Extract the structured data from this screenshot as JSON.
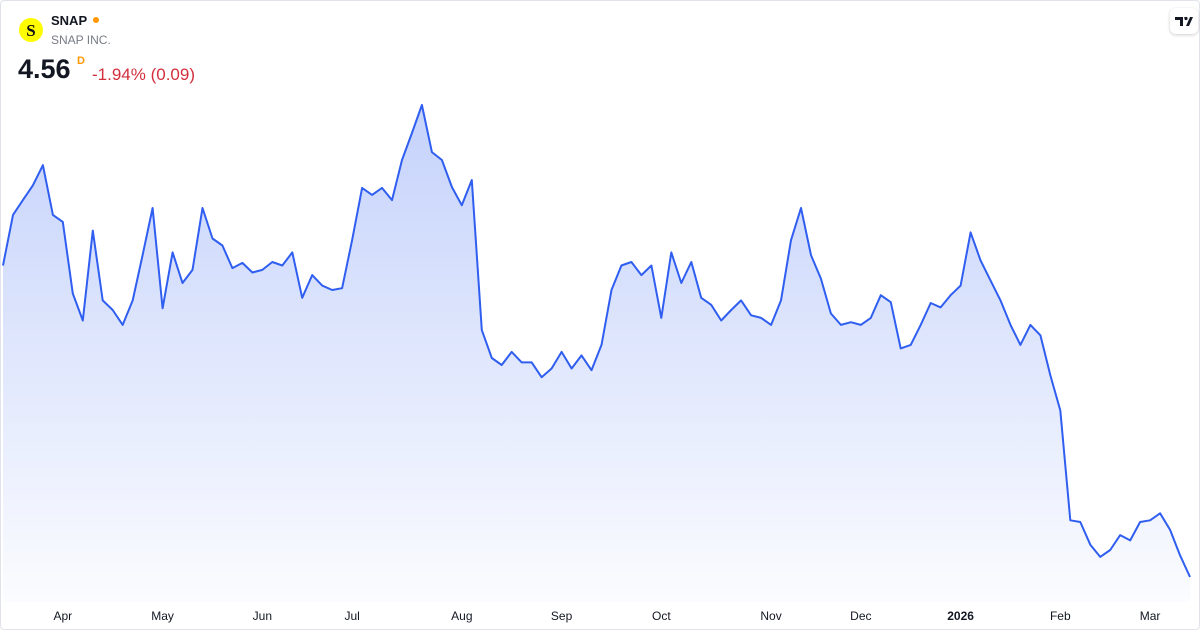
{
  "header": {
    "logo": "S",
    "symbol": "SNAP",
    "company": "SNAP INC.",
    "price": "4.56",
    "interval": "D",
    "change": "-1.94% (0.09)"
  },
  "chart_data": {
    "type": "area",
    "color": "#2f5ef0",
    "categories": [
      null,
      null,
      null,
      null,
      null,
      null,
      "Apr",
      null,
      null,
      null,
      null,
      null,
      null,
      null,
      null,
      null,
      "May",
      null,
      null,
      null,
      null,
      null,
      null,
      null,
      null,
      null,
      "Jun",
      null,
      null,
      null,
      null,
      null,
      null,
      null,
      null,
      "Jul",
      null,
      null,
      null,
      null,
      null,
      null,
      null,
      null,
      null,
      null,
      "Aug",
      null,
      null,
      null,
      null,
      null,
      null,
      null,
      null,
      null,
      "Sep",
      null,
      null,
      null,
      null,
      null,
      null,
      null,
      null,
      null,
      "Oct",
      null,
      null,
      null,
      null,
      null,
      null,
      null,
      null,
      null,
      null,
      "Nov",
      null,
      null,
      null,
      null,
      null,
      null,
      null,
      null,
      "Dec",
      null,
      null,
      null,
      null,
      null,
      null,
      null,
      null,
      null,
      "2026",
      null,
      null,
      null,
      null,
      null,
      null,
      null,
      null,
      null,
      "Feb",
      null,
      null,
      null,
      null,
      null,
      null,
      null,
      null,
      "Mar",
      null,
      null,
      null,
      null
    ],
    "values": [
      8.13,
      8.71,
      8.88,
      9.05,
      9.28,
      8.71,
      8.63,
      7.81,
      7.5,
      8.53,
      7.73,
      7.62,
      7.45,
      7.73,
      8.25,
      8.79,
      7.64,
      8.28,
      7.93,
      8.08,
      8.79,
      8.44,
      8.36,
      8.1,
      8.16,
      8.05,
      8.08,
      8.17,
      8.13,
      8.28,
      7.76,
      8.02,
      7.9,
      7.85,
      7.87,
      8.42,
      9.02,
      8.94,
      9.02,
      8.88,
      9.34,
      9.65,
      9.97,
      9.43,
      9.34,
      9.03,
      8.82,
      9.11,
      7.39,
      7.07,
      6.99,
      7.14,
      7.02,
      7.02,
      6.85,
      6.95,
      7.14,
      6.95,
      7.1,
      6.93,
      7.22,
      7.85,
      8.13,
      8.17,
      8.02,
      8.13,
      7.53,
      8.28,
      7.93,
      8.17,
      7.76,
      7.68,
      7.5,
      7.62,
      7.73,
      7.56,
      7.53,
      7.45,
      7.73,
      8.42,
      8.79,
      8.25,
      7.98,
      7.58,
      7.45,
      7.48,
      7.45,
      7.53,
      7.79,
      7.71,
      7.18,
      7.22,
      7.45,
      7.7,
      7.65,
      7.79,
      7.9,
      8.51,
      8.19,
      7.96,
      7.73,
      7.45,
      7.22,
      7.45,
      7.33,
      6.87,
      6.47,
      5.21,
      5.19,
      4.93,
      4.79,
      4.87,
      5.04,
      4.98,
      5.19,
      5.21,
      5.29,
      5.1,
      4.81,
      4.56
    ]
  }
}
